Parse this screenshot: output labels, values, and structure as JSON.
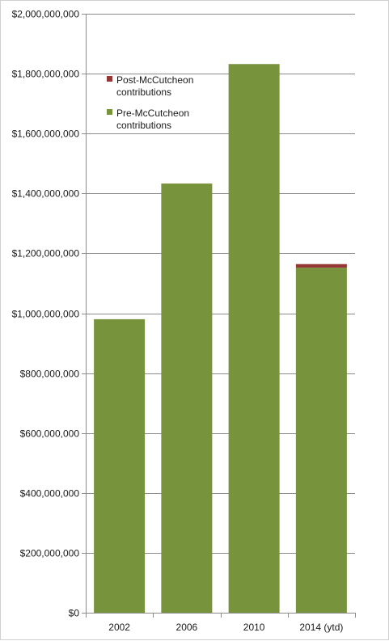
{
  "chart_data": {
    "type": "bar",
    "stacked": true,
    "title": "",
    "xlabel": "",
    "ylabel": "",
    "categories": [
      "2002",
      "2006",
      "2010",
      "2014 (ytd)"
    ],
    "series": [
      {
        "name": "Pre-McCutcheon contributions",
        "color": "#77933c",
        "values": [
          980000000,
          1433000000,
          1832000000,
          1152000000
        ]
      },
      {
        "name": "Post-McCutcheon contributions",
        "color": "#953735",
        "values": [
          0,
          0,
          0,
          12000000
        ]
      }
    ],
    "ylim": [
      0,
      2000000000
    ],
    "yticks": [
      0,
      200000000,
      400000000,
      600000000,
      800000000,
      1000000000,
      1200000000,
      1400000000,
      1600000000,
      1800000000,
      2000000000
    ],
    "ytick_labels": [
      "$0",
      "$200,000,000",
      "$400,000,000",
      "$600,000,000",
      "$800,000,000",
      "$1,000,000,000",
      "$1,200,000,000",
      "$1,400,000,000",
      "$1,600,000,000",
      "$1,800,000,000",
      "$2,000,000,000"
    ],
    "grid": true,
    "legend": {
      "placement": "top-left",
      "entries": [
        {
          "series": 1,
          "lines": [
            "Post-McCutcheon",
            "contributions"
          ]
        },
        {
          "series": 0,
          "lines": [
            "Pre-McCutcheon",
            "contributions"
          ]
        }
      ]
    }
  }
}
